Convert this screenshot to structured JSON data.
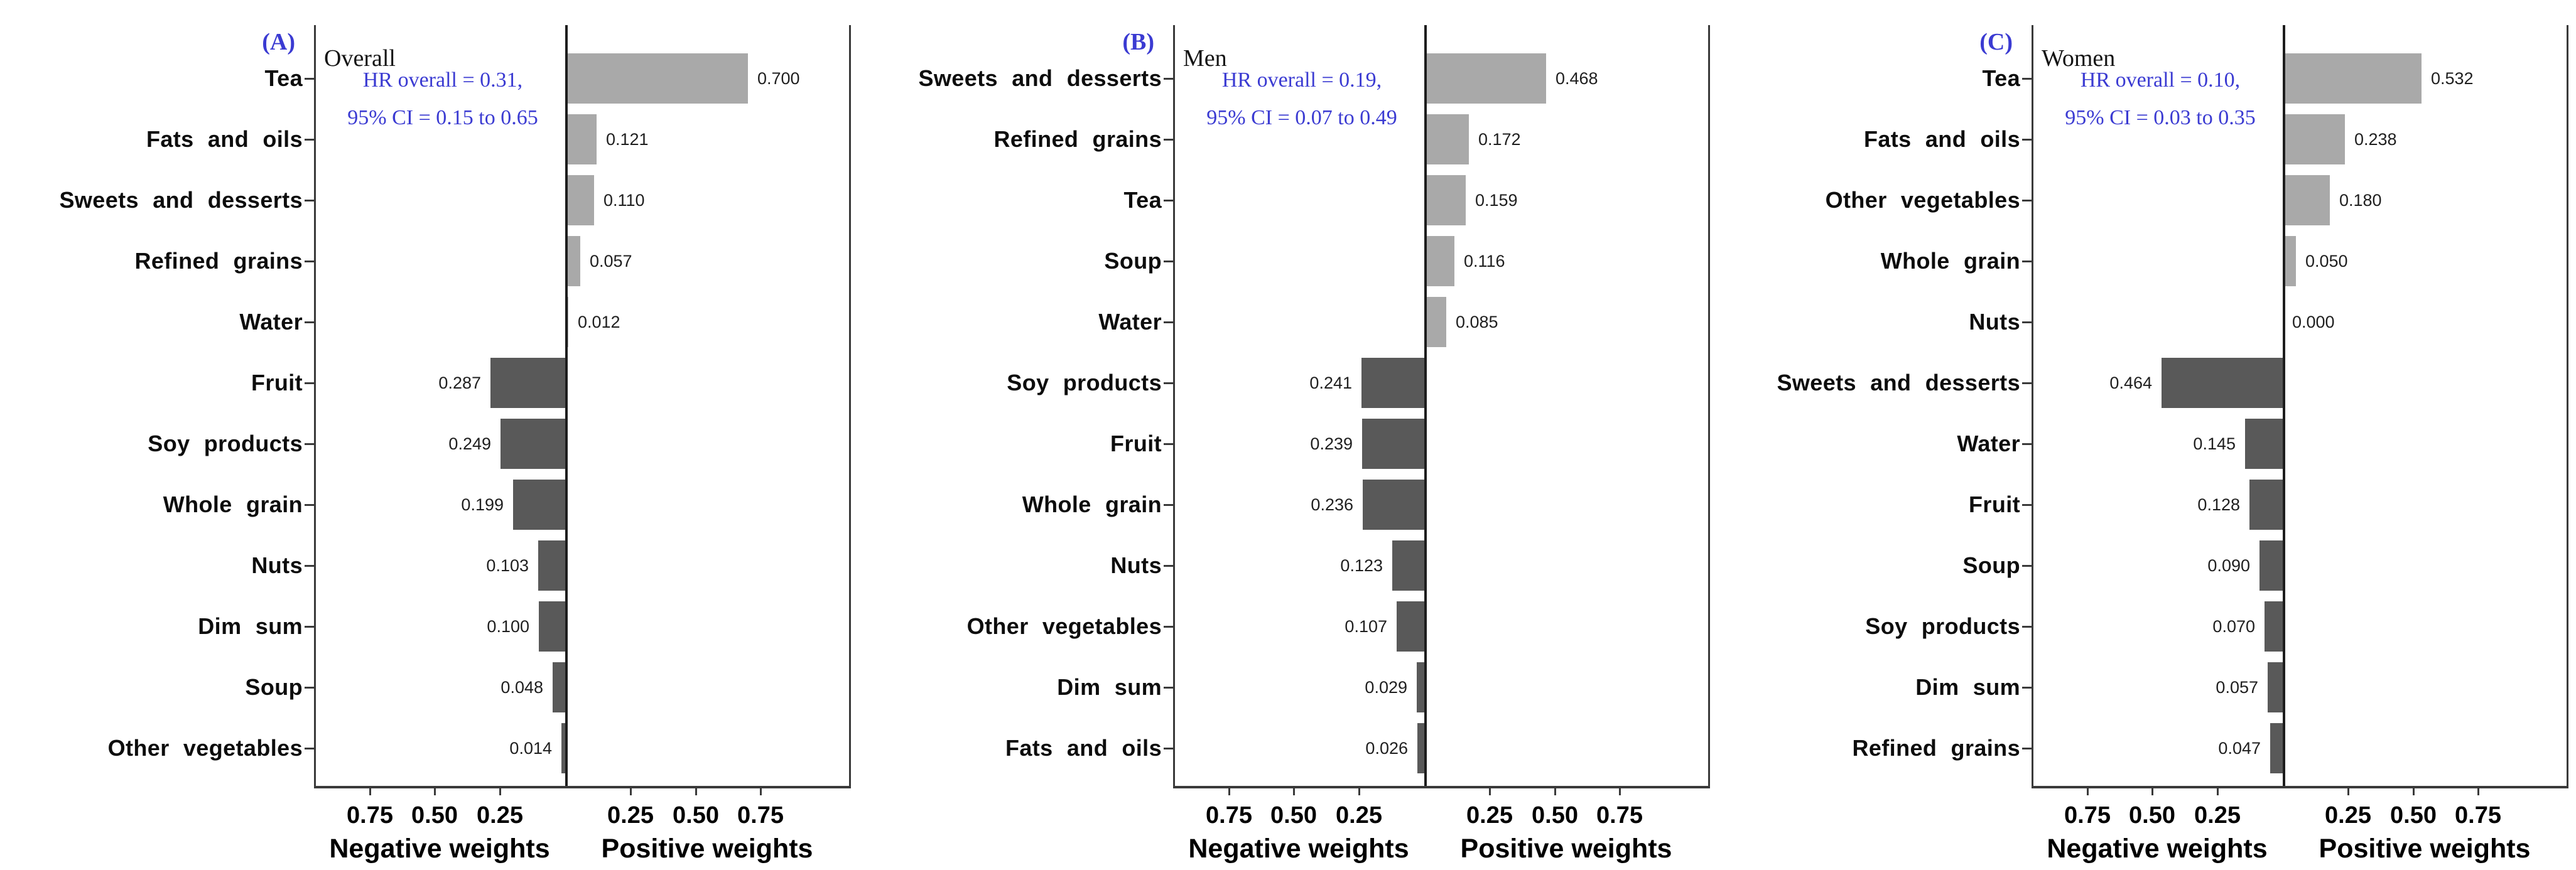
{
  "figure": {
    "background": "#ffffff",
    "colors": {
      "positive_bar": "#a9a9a9",
      "negative_bar": "#595959",
      "annotation_blue": "#3b3bd2",
      "axis_line": "#3a3a3a",
      "zero_line": "#1d1d1d",
      "label_text": "#0d0d0d",
      "value_text": "#1f1f1f"
    },
    "axis": {
      "negative_title": "Negative weights",
      "positive_title": "Positive weights",
      "tick_labels_negative": [
        "0.75",
        "0.50",
        "0.25"
      ],
      "tick_labels_positive": [
        "0.25",
        "0.50",
        "0.75"
      ],
      "tick_values": [
        0.25,
        0.5,
        0.75
      ],
      "axis_half_range": 1.0,
      "grid": "off",
      "legend": "none"
    }
  },
  "chart_data": [
    {
      "type": "bar",
      "orientation": "horizontal-diverging",
      "panel_letter": "(A)",
      "group": "Overall",
      "annotation_line1": "HR overall = 0.31,",
      "annotation_line2": "95% CI = 0.15 to 0.65",
      "xlabel_negative": "Negative weights",
      "xlabel_positive": "Positive weights",
      "rows": [
        {
          "category": "Tea",
          "value": 0.7,
          "direction": "positive",
          "display": "0.700"
        },
        {
          "category": "Fats and oils",
          "value": 0.121,
          "direction": "positive",
          "display": "0.121"
        },
        {
          "category": "Sweets and desserts",
          "value": 0.11,
          "direction": "positive",
          "display": "0.110"
        },
        {
          "category": "Refined grains",
          "value": 0.057,
          "direction": "positive",
          "display": "0.057"
        },
        {
          "category": "Water",
          "value": 0.012,
          "direction": "positive",
          "display": "0.012"
        },
        {
          "category": "Fruit",
          "value": 0.287,
          "direction": "negative",
          "display": "0.287"
        },
        {
          "category": "Soy products",
          "value": 0.249,
          "direction": "negative",
          "display": "0.249"
        },
        {
          "category": "Whole grain",
          "value": 0.199,
          "direction": "negative",
          "display": "0.199"
        },
        {
          "category": "Nuts",
          "value": 0.103,
          "direction": "negative",
          "display": "0.103"
        },
        {
          "category": "Dim sum",
          "value": 0.1,
          "direction": "negative",
          "display": "0.100"
        },
        {
          "category": "Soup",
          "value": 0.048,
          "direction": "negative",
          "display": "0.048"
        },
        {
          "category": "Other vegetables",
          "value": 0.014,
          "direction": "negative",
          "display": "0.014"
        }
      ]
    },
    {
      "type": "bar",
      "orientation": "horizontal-diverging",
      "panel_letter": "(B)",
      "group": "Men",
      "annotation_line1": "HR overall = 0.19,",
      "annotation_line2": "95% CI = 0.07 to 0.49",
      "xlabel_negative": "Negative weights",
      "xlabel_positive": "Positive weights",
      "rows": [
        {
          "category": "Sweets and desserts",
          "value": 0.468,
          "direction": "positive",
          "display": "0.468"
        },
        {
          "category": "Refined grains",
          "value": 0.172,
          "direction": "positive",
          "display": "0.172"
        },
        {
          "category": "Tea",
          "value": 0.159,
          "direction": "positive",
          "display": "0.159"
        },
        {
          "category": "Soup",
          "value": 0.116,
          "direction": "positive",
          "display": "0.116"
        },
        {
          "category": "Water",
          "value": 0.085,
          "direction": "positive",
          "display": "0.085"
        },
        {
          "category": "Soy products",
          "value": 0.241,
          "direction": "negative",
          "display": "0.241"
        },
        {
          "category": "Fruit",
          "value": 0.239,
          "direction": "negative",
          "display": "0.239"
        },
        {
          "category": "Whole grain",
          "value": 0.236,
          "direction": "negative",
          "display": "0.236"
        },
        {
          "category": "Nuts",
          "value": 0.123,
          "direction": "negative",
          "display": "0.123"
        },
        {
          "category": "Other vegetables",
          "value": 0.107,
          "direction": "negative",
          "display": "0.107"
        },
        {
          "category": "Dim sum",
          "value": 0.029,
          "direction": "negative",
          "display": "0.029"
        },
        {
          "category": "Fats and oils",
          "value": 0.026,
          "direction": "negative",
          "display": "0.026"
        }
      ]
    },
    {
      "type": "bar",
      "orientation": "horizontal-diverging",
      "panel_letter": "(C)",
      "group": "Women",
      "annotation_line1": "HR overall = 0.10,",
      "annotation_line2": "95% CI = 0.03 to 0.35",
      "xlabel_negative": "Negative weights",
      "xlabel_positive": "Positive weights",
      "rows": [
        {
          "category": "Tea",
          "value": 0.532,
          "direction": "positive",
          "display": "0.532"
        },
        {
          "category": "Fats and oils",
          "value": 0.238,
          "direction": "positive",
          "display": "0.238"
        },
        {
          "category": "Other vegetables",
          "value": 0.18,
          "direction": "positive",
          "display": "0.180"
        },
        {
          "category": "Whole grain",
          "value": 0.05,
          "direction": "positive",
          "display": "0.050"
        },
        {
          "category": "Nuts",
          "value": 0.0,
          "direction": "positive",
          "display": "0.000"
        },
        {
          "category": "Sweets and desserts",
          "value": 0.464,
          "direction": "negative",
          "display": "0.464"
        },
        {
          "category": "Water",
          "value": 0.145,
          "direction": "negative",
          "display": "0.145"
        },
        {
          "category": "Fruit",
          "value": 0.128,
          "direction": "negative",
          "display": "0.128"
        },
        {
          "category": "Soup",
          "value": 0.09,
          "direction": "negative",
          "display": "0.090"
        },
        {
          "category": "Soy products",
          "value": 0.07,
          "direction": "negative",
          "display": "0.070"
        },
        {
          "category": "Dim sum",
          "value": 0.057,
          "direction": "negative",
          "display": "0.057"
        },
        {
          "category": "Refined grains",
          "value": 0.047,
          "direction": "negative",
          "display": "0.047"
        }
      ]
    }
  ]
}
